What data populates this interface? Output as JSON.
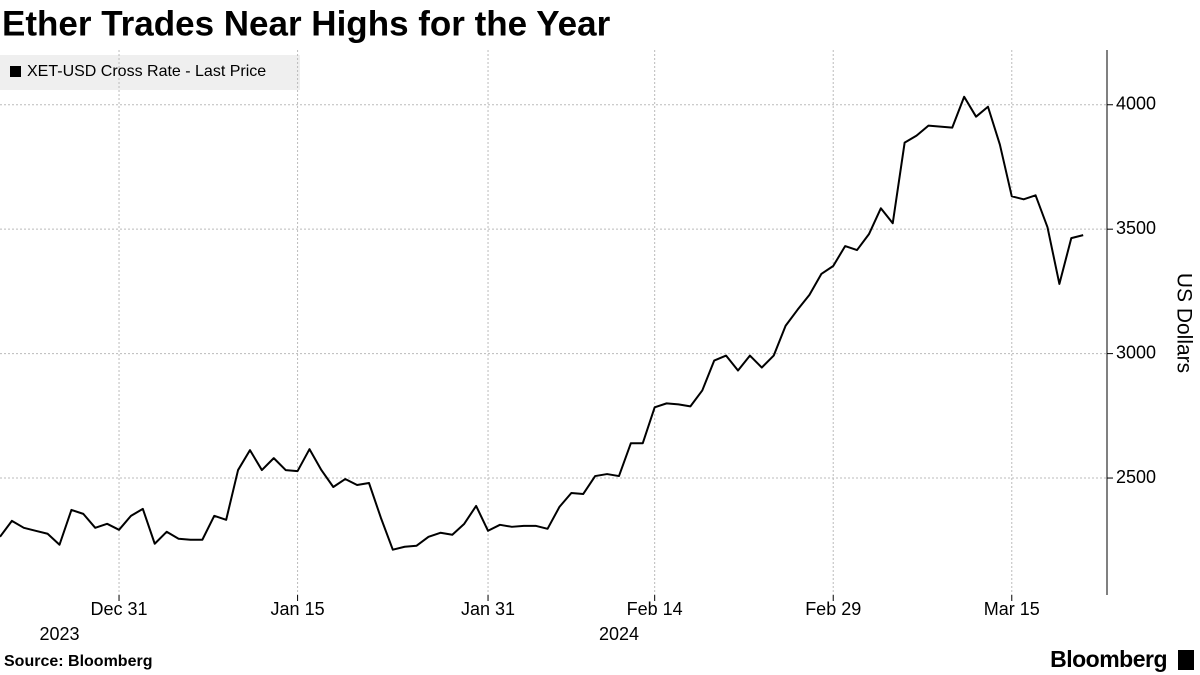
{
  "chart_data": {
    "type": "line",
    "title": "Ether Trades Near Highs for the Year",
    "y_axis_label": "US Dollars",
    "source": "Source: Bloomberg",
    "brand": "Bloomberg",
    "x": [
      "2023-12-21",
      "2023-12-22",
      "2023-12-23",
      "2023-12-24",
      "2023-12-25",
      "2023-12-26",
      "2023-12-27",
      "2023-12-28",
      "2023-12-29",
      "2023-12-30",
      "2023-12-31",
      "2024-01-01",
      "2024-01-02",
      "2024-01-03",
      "2024-01-04",
      "2024-01-05",
      "2024-01-06",
      "2024-01-07",
      "2024-01-08",
      "2024-01-09",
      "2024-01-10",
      "2024-01-11",
      "2024-01-12",
      "2024-01-13",
      "2024-01-14",
      "2024-01-15",
      "2024-01-16",
      "2024-01-17",
      "2024-01-18",
      "2024-01-19",
      "2024-01-20",
      "2024-01-21",
      "2024-01-22",
      "2024-01-23",
      "2024-01-24",
      "2024-01-25",
      "2024-01-26",
      "2024-01-27",
      "2024-01-28",
      "2024-01-29",
      "2024-01-30",
      "2024-01-31",
      "2024-02-01",
      "2024-02-02",
      "2024-02-03",
      "2024-02-04",
      "2024-02-05",
      "2024-02-06",
      "2024-02-07",
      "2024-02-08",
      "2024-02-09",
      "2024-02-10",
      "2024-02-11",
      "2024-02-12",
      "2024-02-13",
      "2024-02-14",
      "2024-02-15",
      "2024-02-16",
      "2024-02-17",
      "2024-02-18",
      "2024-02-19",
      "2024-02-20",
      "2024-02-21",
      "2024-02-22",
      "2024-02-23",
      "2024-02-24",
      "2024-02-25",
      "2024-02-26",
      "2024-02-27",
      "2024-02-28",
      "2024-02-29",
      "2024-03-01",
      "2024-03-02",
      "2024-03-03",
      "2024-03-04",
      "2024-03-05",
      "2024-03-06",
      "2024-03-07",
      "2024-03-08",
      "2024-03-09",
      "2024-03-10",
      "2024-03-11",
      "2024-03-12",
      "2024-03-13",
      "2024-03-14",
      "2024-03-15",
      "2024-03-16",
      "2024-03-17",
      "2024-03-18",
      "2024-03-19",
      "2024-03-20",
      "2024-03-21"
    ],
    "series": [
      {
        "name": "XET-USD Cross Rate - Last Price",
        "color": "#000000",
        "values": [
          2264,
          2328,
          2300,
          2288,
          2276,
          2232,
          2372,
          2356,
          2300,
          2316,
          2292,
          2348,
          2376,
          2236,
          2284,
          2256,
          2252,
          2252,
          2348,
          2332,
          2532,
          2612,
          2532,
          2580,
          2532,
          2528,
          2616,
          2532,
          2464,
          2496,
          2472,
          2480,
          2340,
          2212,
          2224,
          2228,
          2264,
          2280,
          2272,
          2316,
          2388,
          2288,
          2312,
          2304,
          2308,
          2308,
          2296,
          2384,
          2440,
          2436,
          2508,
          2516,
          2508,
          2640,
          2640,
          2784,
          2800,
          2796,
          2788,
          2852,
          2972,
          2992,
          2932,
          2992,
          2944,
          2992,
          3112,
          3176,
          3236,
          3320,
          3352,
          3432,
          3416,
          3480,
          3584,
          3524,
          3848,
          3876,
          3916,
          3912,
          3908,
          4032,
          3952,
          3992,
          3840,
          3632,
          3620,
          3636,
          3508,
          3280,
          3464,
          3476
        ]
      }
    ],
    "xlim": [
      "2023-12-21",
      "2024-03-23"
    ],
    "xticks": [
      {
        "value": "2023-12-31",
        "label": "Dec 31"
      },
      {
        "value": "2024-01-15",
        "label": "Jan 15"
      },
      {
        "value": "2024-01-31",
        "label": "Jan 31"
      },
      {
        "value": "2024-02-14",
        "label": "Feb 14"
      },
      {
        "value": "2024-02-29",
        "label": "Feb 29"
      },
      {
        "value": "2024-03-15",
        "label": "Mar 15"
      }
    ],
    "x_year_labels": [
      {
        "value": "2023-12-26",
        "label": "2023"
      },
      {
        "value": "2024-02-11",
        "label": "2024"
      }
    ],
    "ylim": [
      2030,
      4220
    ],
    "yticks": [
      2500,
      3000,
      3500,
      4000
    ],
    "grid": true
  }
}
